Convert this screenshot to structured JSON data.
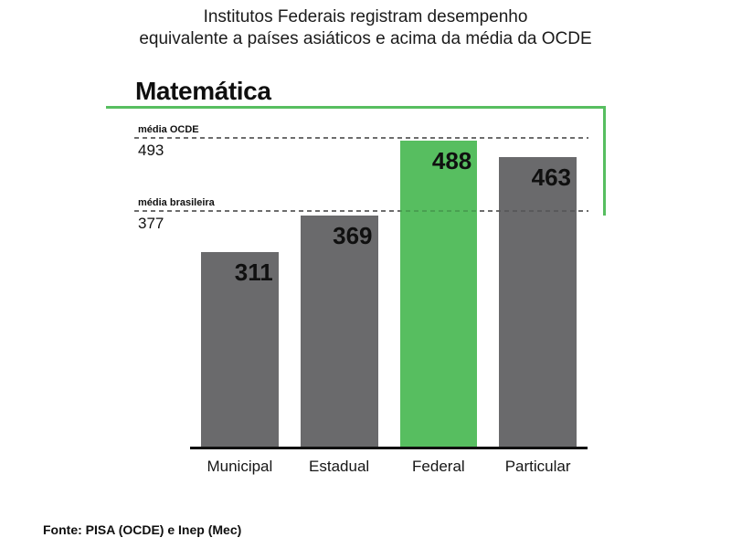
{
  "header": {
    "title_line1": "Institutos Federais registram desempenho",
    "title_line2": "equivalente a países asiáticos e acima da média da OCDE"
  },
  "chart": {
    "heading": "Matemática"
  },
  "chart_data": {
    "type": "bar",
    "title": "Matemática",
    "categories": [
      "Municipal",
      "Estadual",
      "Federal",
      "Particular"
    ],
    "values": [
      311,
      369,
      488,
      463
    ],
    "bar_colors": [
      "#6a6a6c",
      "#6a6a6c",
      "#57be60",
      "#6a6a6c"
    ],
    "highlight_index": 2,
    "highlight_category": "Federal",
    "reference_lines": [
      {
        "label": "média OCDE",
        "value": 493,
        "style": "dashed"
      },
      {
        "label": "média brasileira",
        "value": 377,
        "style": "dashed"
      }
    ],
    "value_labels": "inside-top-right",
    "xlabel": "",
    "ylabel": "",
    "ylim": [
      0,
      542
    ],
    "grid": false,
    "legend": false
  },
  "footer": {
    "source": "Fonte: PISA (OCDE) e Inep (Mec)"
  },
  "colors": {
    "accent_green": "#57be60",
    "bar_gray": "#6a6a6c",
    "dash_gray": "#828282",
    "axis_black": "#101010"
  }
}
